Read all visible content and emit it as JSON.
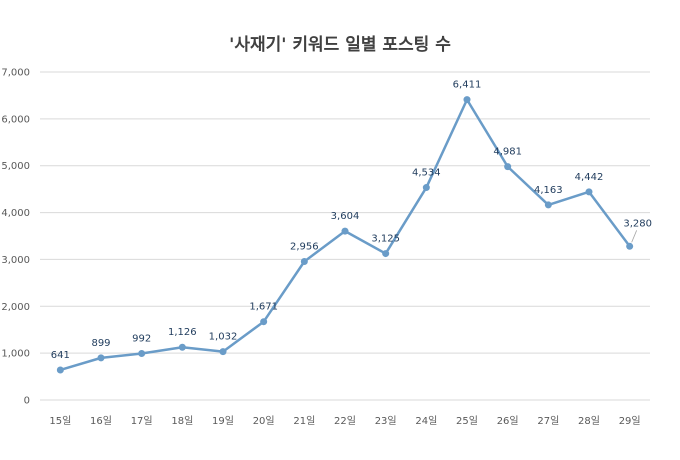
{
  "chart_data": {
    "type": "line",
    "title": "'사재기' 키워드 일별 포스팅 수",
    "categories": [
      "15일",
      "16일",
      "17일",
      "18일",
      "19일",
      "20일",
      "21일",
      "22일",
      "23일",
      "24일",
      "25일",
      "26일",
      "27일",
      "28일",
      "29일"
    ],
    "series": [
      {
        "values": [
          641,
          899,
          992,
          1126,
          1032,
          1671,
          2956,
          3604,
          3125,
          4534,
          6411,
          4981,
          4163,
          4442,
          3280
        ]
      }
    ],
    "data_labels": [
      "641",
      "899",
      "992",
      "1,126",
      "1,032",
      "1,671",
      "2,956",
      "3,604",
      "3,125",
      "4,534",
      "6,411",
      "4,981",
      "4,163",
      "4,442",
      "3,280"
    ],
    "ylim": [
      0,
      7000
    ],
    "yticks": [
      0,
      1000,
      2000,
      3000,
      4000,
      5000,
      6000,
      7000
    ],
    "ytick_labels": [
      "0",
      "1,000",
      "2,000",
      "3,000",
      "4,000",
      "5,000",
      "6,000",
      "7,000"
    ],
    "grid": true,
    "legend": "none",
    "xlabel": "",
    "ylabel": "",
    "colors": {
      "line": "#6a9cc8",
      "grid": "#d9d9d9",
      "label": "#1f3b5c"
    }
  }
}
